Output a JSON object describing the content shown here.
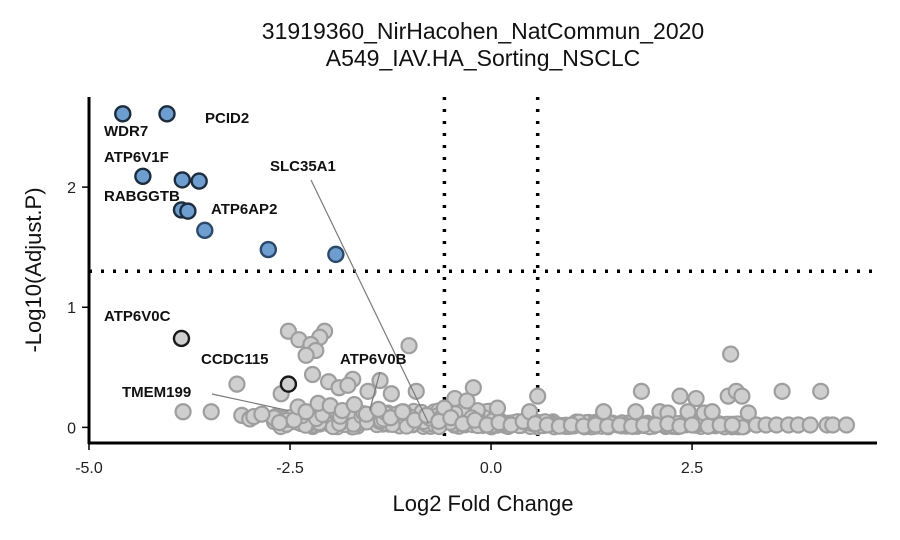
{
  "chart_data": {
    "type": "scatter",
    "title": "31919360_NirHacohen_NatCommun_2020",
    "subtitle": "A549_IAV.HA_Sorting_NSCLC",
    "xlabel": "Log2 Fold Change",
    "ylabel": "-Log10(Adjust.P)",
    "xlim": [
      -5.0,
      4.8
    ],
    "ylim": [
      -0.13,
      2.75
    ],
    "x_ticks": [
      "-5.0",
      "-2.5",
      "0.0",
      "2.5"
    ],
    "y_ticks": [
      "0",
      "1",
      "2"
    ],
    "thresholds": {
      "log2fc": [
        -0.58,
        0.58
      ],
      "neg_log10_p": 1.3
    },
    "grid": false,
    "colors": {
      "significant_fill": "#6e9ecf",
      "significant_stroke": "#2b4a6b",
      "gray_fill": "#cfcfcf",
      "gray_stroke": "#9e9e9e",
      "threshold_line": "#000000"
    },
    "significant_points": [
      {
        "x": -4.58,
        "y": 2.61
      },
      {
        "x": -4.03,
        "y": 2.61
      },
      {
        "x": -4.33,
        "y": 2.09
      },
      {
        "x": -3.84,
        "y": 2.06
      },
      {
        "x": -3.63,
        "y": 2.05
      },
      {
        "x": -3.85,
        "y": 1.81
      },
      {
        "x": -3.77,
        "y": 1.8
      },
      {
        "x": -3.56,
        "y": 1.64
      },
      {
        "x": -2.77,
        "y": 1.48
      },
      {
        "x": -1.93,
        "y": 1.44
      }
    ],
    "highlighted_points": [
      {
        "x": -3.85,
        "y": 0.74
      },
      {
        "x": -2.52,
        "y": 0.36
      }
    ],
    "gray_points": [
      {
        "x": -2.52,
        "y": 0.8
      },
      {
        "x": -2.39,
        "y": 0.73
      },
      {
        "x": -2.07,
        "y": 0.8
      },
      {
        "x": -2.13,
        "y": 0.75
      },
      {
        "x": -2.24,
        "y": 0.69
      },
      {
        "x": -2.18,
        "y": 0.64
      },
      {
        "x": -2.3,
        "y": 0.6
      },
      {
        "x": -1.02,
        "y": 0.68
      },
      {
        "x": -3.16,
        "y": 0.36
      },
      {
        "x": -2.02,
        "y": 0.38
      },
      {
        "x": -1.72,
        "y": 0.4
      },
      {
        "x": -1.38,
        "y": 0.39
      },
      {
        "x": -2.22,
        "y": 0.44
      },
      {
        "x": -1.89,
        "y": 0.33
      },
      {
        "x": -1.53,
        "y": 0.3
      },
      {
        "x": -1.78,
        "y": 0.35
      },
      {
        "x": -2.61,
        "y": 0.28
      },
      {
        "x": -1.24,
        "y": 0.28
      },
      {
        "x": -0.93,
        "y": 0.3
      },
      {
        "x": -0.45,
        "y": 0.24
      },
      {
        "x": -0.22,
        "y": 0.33
      },
      {
        "x": -0.3,
        "y": 0.22
      },
      {
        "x": 0.08,
        "y": 0.16
      },
      {
        "x": -0.58,
        "y": 0.16
      },
      {
        "x": -3.83,
        "y": 0.13
      },
      {
        "x": -3.48,
        "y": 0.13
      },
      {
        "x": -3.1,
        "y": 0.1
      },
      {
        "x": -3.0,
        "y": 0.07
      },
      {
        "x": -2.95,
        "y": 0.09
      },
      {
        "x": -2.7,
        "y": 0.08
      },
      {
        "x": -2.85,
        "y": 0.11
      },
      {
        "x": -2.63,
        "y": 0.04
      },
      {
        "x": -2.45,
        "y": 0.06
      },
      {
        "x": -2.4,
        "y": 0.17
      },
      {
        "x": -2.3,
        "y": 0.13
      },
      {
        "x": -2.15,
        "y": 0.2
      },
      {
        "x": -2.0,
        "y": 0.18
      },
      {
        "x": -1.85,
        "y": 0.14
      },
      {
        "x": -1.7,
        "y": 0.19
      },
      {
        "x": -1.55,
        "y": 0.11
      },
      {
        "x": -1.4,
        "y": 0.15
      },
      {
        "x": -1.25,
        "y": 0.08
      },
      {
        "x": -1.1,
        "y": 0.13
      },
      {
        "x": -0.95,
        "y": 0.06
      },
      {
        "x": -0.8,
        "y": 0.1
      },
      {
        "x": -0.65,
        "y": 0.05
      },
      {
        "x": -0.5,
        "y": 0.08
      },
      {
        "x": -0.35,
        "y": 0.03
      },
      {
        "x": -0.2,
        "y": 0.06
      },
      {
        "x": -0.05,
        "y": 0.02
      },
      {
        "x": 0.1,
        "y": 0.04
      },
      {
        "x": 0.25,
        "y": 0.02
      },
      {
        "x": 0.4,
        "y": 0.05
      },
      {
        "x": 0.48,
        "y": 0.13
      },
      {
        "x": 0.58,
        "y": 0.26
      },
      {
        "x": 0.55,
        "y": 0.03
      },
      {
        "x": 0.7,
        "y": 0.02
      },
      {
        "x": 0.85,
        "y": 0.01
      },
      {
        "x": 1.0,
        "y": 0.02
      },
      {
        "x": 1.15,
        "y": 0.01
      },
      {
        "x": 1.3,
        "y": 0.02
      },
      {
        "x": 1.45,
        "y": 0.01
      },
      {
        "x": 1.6,
        "y": 0.02
      },
      {
        "x": 1.75,
        "y": 0.01
      },
      {
        "x": 1.9,
        "y": 0.02
      },
      {
        "x": 1.4,
        "y": 0.13
      },
      {
        "x": 1.8,
        "y": 0.13
      },
      {
        "x": 1.87,
        "y": 0.3
      },
      {
        "x": 2.1,
        "y": 0.13
      },
      {
        "x": 2.2,
        "y": 0.12
      },
      {
        "x": 2.35,
        "y": 0.26
      },
      {
        "x": 2.45,
        "y": 0.13
      },
      {
        "x": 2.55,
        "y": 0.24
      },
      {
        "x": 2.65,
        "y": 0.12
      },
      {
        "x": 2.75,
        "y": 0.13
      },
      {
        "x": 2.05,
        "y": 0.02
      },
      {
        "x": 2.2,
        "y": 0.03
      },
      {
        "x": 2.35,
        "y": 0.01
      },
      {
        "x": 2.5,
        "y": 0.02
      },
      {
        "x": 2.7,
        "y": 0.01
      },
      {
        "x": 2.85,
        "y": 0.02
      },
      {
        "x": 2.98,
        "y": 0.61
      },
      {
        "x": 2.95,
        "y": 0.26
      },
      {
        "x": 3.05,
        "y": 0.3
      },
      {
        "x": 3.12,
        "y": 0.26
      },
      {
        "x": 3.2,
        "y": 0.12
      },
      {
        "x": 3.0,
        "y": 0.02
      },
      {
        "x": 3.3,
        "y": 0.02
      },
      {
        "x": 3.42,
        "y": 0.02
      },
      {
        "x": 3.55,
        "y": 0.02
      },
      {
        "x": 3.62,
        "y": 0.3
      },
      {
        "x": 3.7,
        "y": 0.02
      },
      {
        "x": 3.82,
        "y": 0.02
      },
      {
        "x": 3.97,
        "y": 0.02
      },
      {
        "x": 4.1,
        "y": 0.3
      },
      {
        "x": 4.18,
        "y": 0.02
      },
      {
        "x": 4.25,
        "y": 0.02
      },
      {
        "x": 4.42,
        "y": 0.02
      }
    ],
    "labels": [
      {
        "text": "WDR7",
        "x": -4.58,
        "y": 2.61
      },
      {
        "text": "PCID2",
        "x": -4.03,
        "y": 2.61
      },
      {
        "text": "ATP6V1F",
        "x": -4.33,
        "y": 2.09
      },
      {
        "text": "RABGGTB",
        "x": -3.85,
        "y": 1.81
      },
      {
        "text": "ATP6AP2",
        "x": -3.56,
        "y": 1.64
      },
      {
        "text": "SLC35A1",
        "x": -0.78,
        "y": 0.04
      },
      {
        "text": "ATP6V0C",
        "x": -3.85,
        "y": 0.74
      },
      {
        "text": "CCDC115",
        "x": -2.52,
        "y": 0.36
      },
      {
        "text": "ATP6V0B",
        "x": -1.51,
        "y": 0.14
      },
      {
        "text": "TMEM199",
        "x": -2.52,
        "y": 0.14
      }
    ]
  }
}
